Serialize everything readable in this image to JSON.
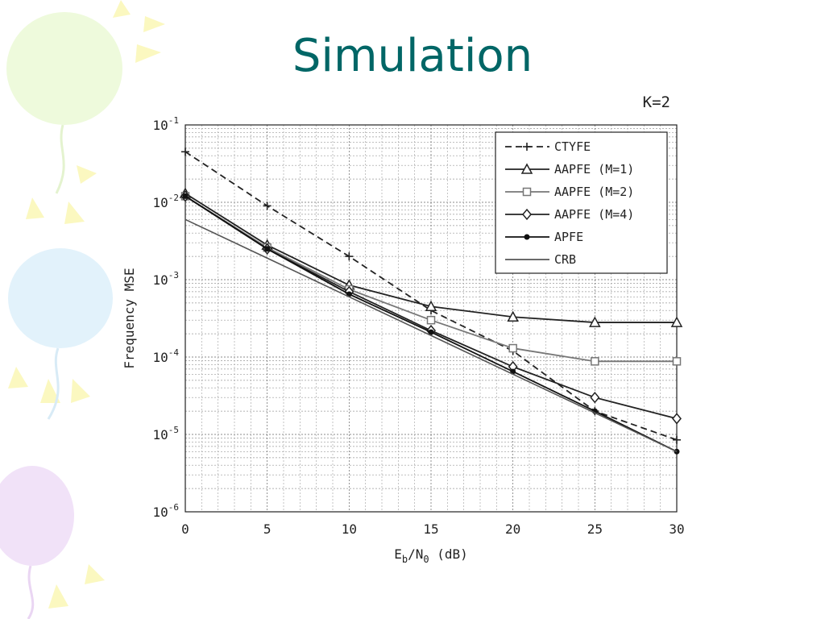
{
  "slide": {
    "title": "Simulation"
  },
  "colors": {
    "title": "#006666",
    "balloon_green": "#eefadc",
    "balloon_blue": "#e2f2fb",
    "balloon_purple": "#f1e2f8",
    "rays": "#fbf8c0"
  },
  "chart_data": {
    "type": "line",
    "title": "K=2",
    "xlabel_main": "E",
    "xlabel_sub_b": "b",
    "xlabel_slash": "/N",
    "xlabel_sub_0": "0",
    "xlabel_unit": " (dB)",
    "ylabel": "Frequency MSE",
    "x_scale": "linear",
    "y_scale": "log",
    "xlim": [
      0,
      30
    ],
    "ylim": [
      1e-06,
      0.1
    ],
    "x_ticks": [
      "0",
      "5",
      "10",
      "15",
      "20",
      "25",
      "30"
    ],
    "y_ticks": [
      {
        "base": "10",
        "exp": "-1"
      },
      {
        "base": "10",
        "exp": "-2"
      },
      {
        "base": "10",
        "exp": "-3"
      },
      {
        "base": "10",
        "exp": "-4"
      },
      {
        "base": "10",
        "exp": "-5"
      },
      {
        "base": "10",
        "exp": "-6"
      }
    ],
    "grid": true,
    "legend_position": "top-right",
    "series": [
      {
        "name": "CTYFE",
        "marker": "plus",
        "dash": true,
        "color": "#222222",
        "x": [
          0,
          5,
          10,
          15,
          20,
          25,
          30
        ],
        "y": [
          0.045,
          0.009,
          0.002,
          0.0004,
          0.00012,
          2e-05,
          8.5e-06
        ]
      },
      {
        "name": "AAPFE (M=1)",
        "marker": "triangle",
        "dash": false,
        "color": "#222222",
        "x": [
          0,
          5,
          10,
          15,
          20,
          25,
          30
        ],
        "y": [
          0.013,
          0.0028,
          0.00085,
          0.00045,
          0.00033,
          0.00028,
          0.00028
        ]
      },
      {
        "name": "AAPFE (M=2)",
        "marker": "square",
        "dash": false,
        "color": "#777777",
        "x": [
          0,
          5,
          10,
          15,
          20,
          25,
          30
        ],
        "y": [
          0.012,
          0.0026,
          0.00075,
          0.0003,
          0.00013,
          8.8e-05,
          8.8e-05
        ]
      },
      {
        "name": "AAPFE (M=4)",
        "marker": "diamond",
        "dash": false,
        "color": "#222222",
        "x": [
          0,
          5,
          10,
          15,
          20,
          25,
          30
        ],
        "y": [
          0.012,
          0.0025,
          0.0007,
          0.00022,
          7.5e-05,
          3e-05,
          1.6e-05
        ]
      },
      {
        "name": "APFE",
        "marker": "dot",
        "dash": false,
        "color": "#111111",
        "x": [
          0,
          5,
          10,
          15,
          20,
          25,
          30
        ],
        "y": [
          0.012,
          0.0025,
          0.00065,
          0.00021,
          6.5e-05,
          2e-05,
          6e-06
        ]
      },
      {
        "name": "CRB",
        "marker": "none",
        "dash": false,
        "color": "#555555",
        "x": [
          0,
          5,
          10,
          15,
          20,
          25,
          30
        ],
        "y": [
          0.006,
          0.0019,
          0.0006,
          0.00019,
          6e-05,
          1.9e-05,
          6e-06
        ]
      }
    ]
  }
}
